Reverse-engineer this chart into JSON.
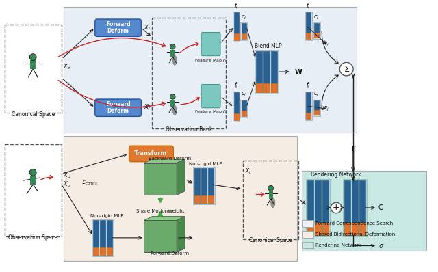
{
  "fig_width": 6.4,
  "fig_height": 3.98,
  "dpi": 100,
  "bg_color": "#ffffff",
  "region_top_bg": "#e8eef5",
  "region_bottom_bg": "#f5ede4",
  "region_render_bg": "#c8e8e4",
  "legend_fcs_color": "#eef2f7",
  "legend_sbd_color": "#f5ede4",
  "legend_rn_color": "#c8e8e4",
  "bar_blue_dark": "#2a6090",
  "bar_orange": "#e07030",
  "red_arrow": "#cc2222",
  "forward_deform_box_color": "#5588cc",
  "forward_deform_text": "Forward\nDeform",
  "transform_box_color": "#e07830",
  "transform_text": "Transform",
  "blend_mlp_label": "Blend MLP",
  "observation_bank_label": "Observation Bank",
  "canonical_space_label": "Canonical Space",
  "observation_space_label": "Observation Space",
  "non_rigid_mlp_label": "Non-rigid MLP",
  "share_motion_label": "Share MotionWeight",
  "backward_deform_label": "Backward Deform",
  "forward_deform_label2": "Forward Deform",
  "rendering_network_label": "Rendering Network",
  "fcs_label": "Forward Correspondence Search",
  "sbd_label": "Shared Bidirectional Deformation",
  "rn_label": "Rendering Network"
}
